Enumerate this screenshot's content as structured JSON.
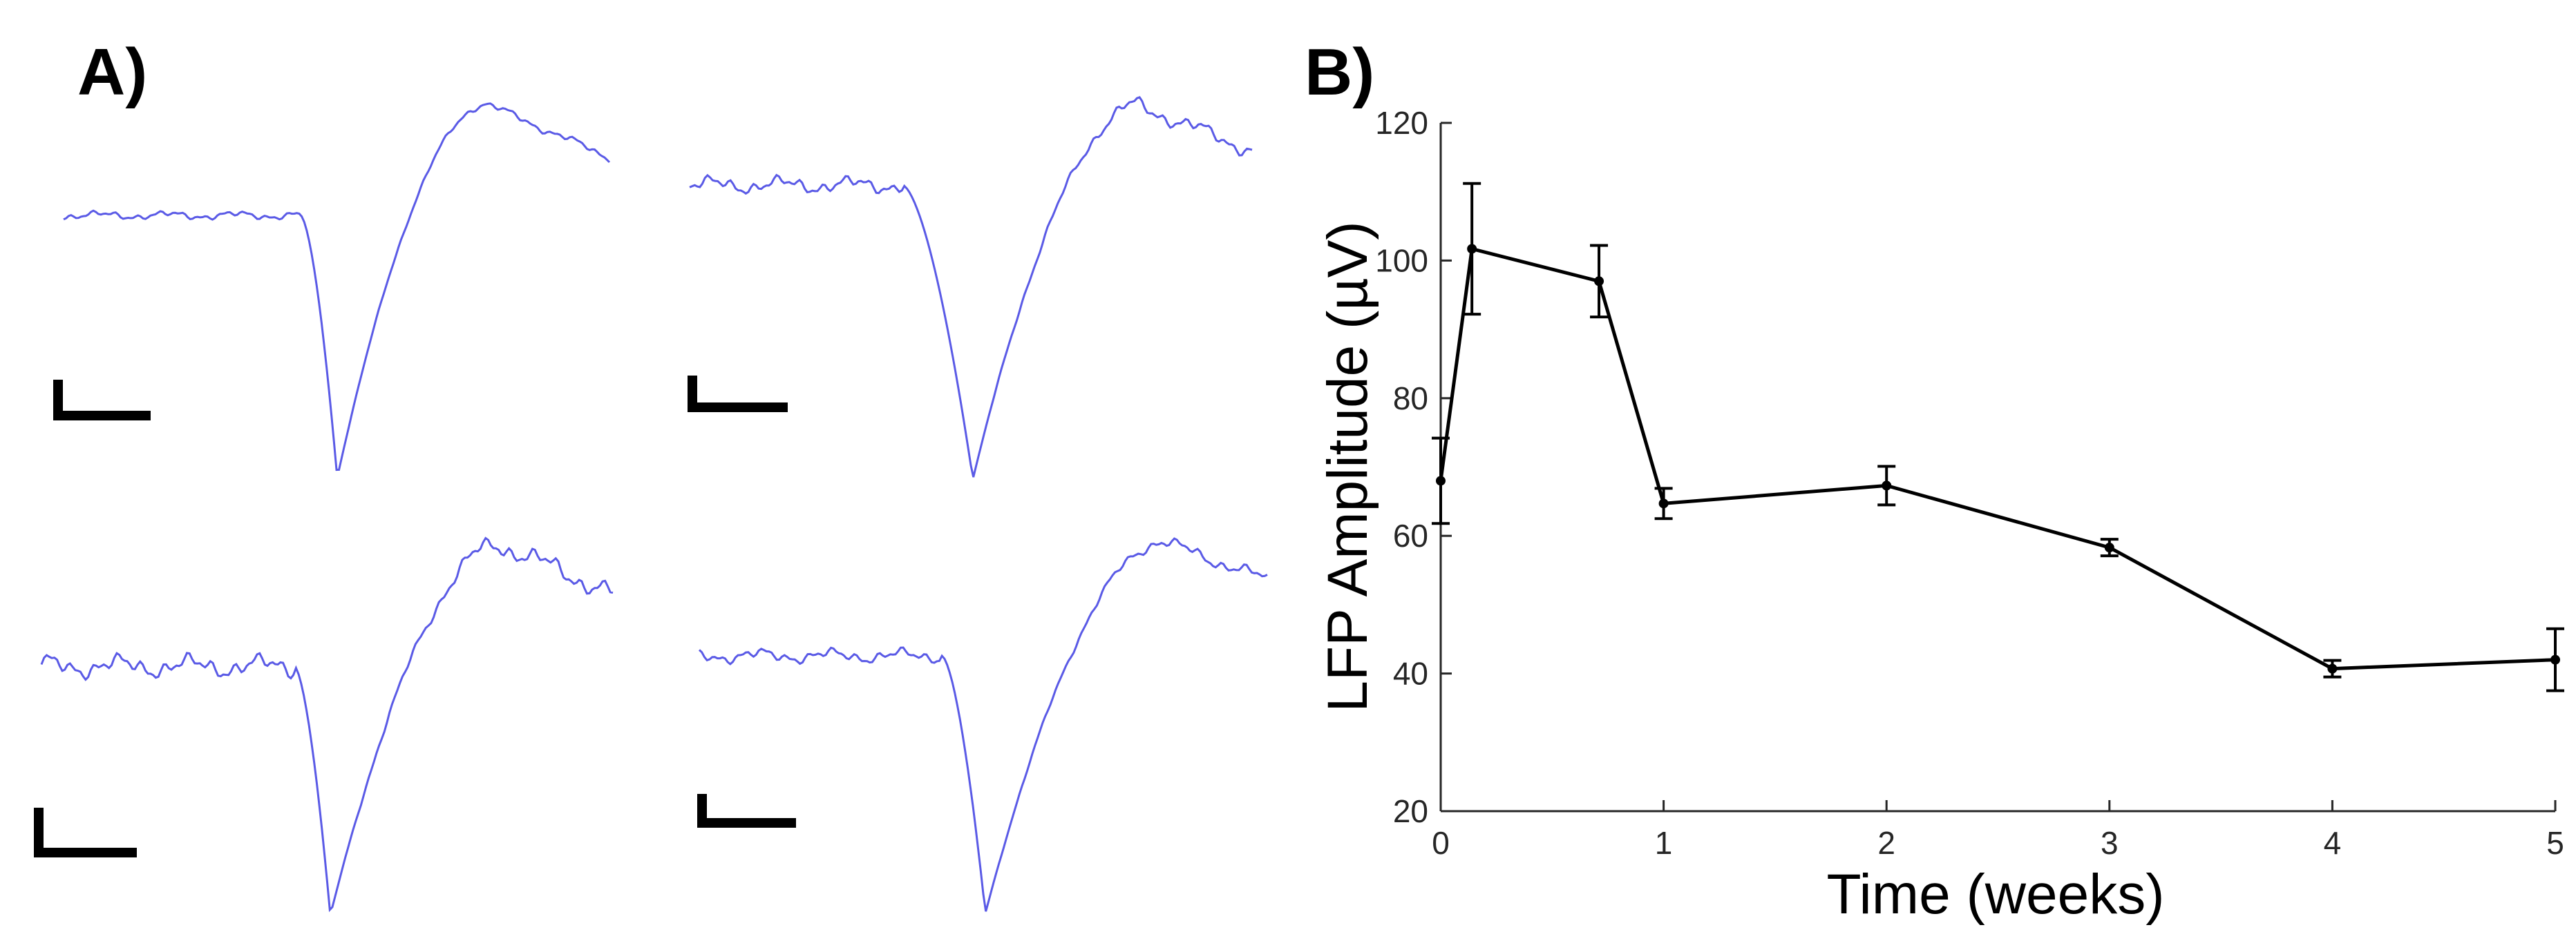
{
  "panel_labels": {
    "a": "A)",
    "b": "B)"
  },
  "colors": {
    "trace": "#5a5ae6",
    "line": "#000000",
    "axis": "#262626"
  },
  "chart_data": [
    {
      "type": "line",
      "panel": "A)",
      "description_of_series": "four extracellular spike waveform traces with scale bars",
      "series": [
        {
          "trace": "top-left"
        },
        {
          "trace": "top-right"
        },
        {
          "trace": "bottom-left"
        },
        {
          "trace": "bottom-right"
        }
      ]
    },
    {
      "type": "line",
      "panel": "B)",
      "xlabel": "Time (weeks)",
      "ylabel": "LFP Amplitude (µV)",
      "xlim": [
        0,
        5
      ],
      "ylim": [
        20,
        120
      ],
      "xticks": [
        0,
        1,
        2,
        3,
        4,
        5
      ],
      "yticks": [
        20,
        40,
        60,
        80,
        100,
        120
      ],
      "grid": false,
      "x": [
        0,
        0.14,
        0.71,
        1,
        2,
        3,
        4,
        5
      ],
      "y": [
        68,
        101.7,
        97,
        64.7,
        67.3,
        58.3,
        40.7,
        42
      ],
      "error": [
        6.2,
        9.5,
        5.2,
        2.2,
        2.8,
        1.2,
        1.2,
        4.5
      ]
    }
  ]
}
